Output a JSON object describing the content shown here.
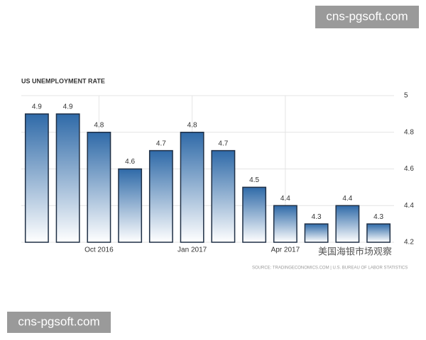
{
  "chart_data": {
    "type": "bar",
    "title": "US UNEMPLOYMENT RATE",
    "categories": [
      null,
      null,
      "Oct 2016",
      null,
      null,
      "Jan 2017",
      null,
      null,
      "Apr 2017",
      null,
      null,
      null
    ],
    "values": [
      4.9,
      4.9,
      4.8,
      4.6,
      4.7,
      4.8,
      4.7,
      4.5,
      4.4,
      4.3,
      4.4,
      4.3
    ],
    "color": "#2f6aa8",
    "ylim": [
      4.2,
      5
    ],
    "yticks": [
      4.2,
      4.4,
      4.6,
      4.8,
      5
    ],
    "grid": true,
    "source": "SOURCE: TRADINGECONOMICS.COM | U.S. BUREAU OF LABOR STATISTICS"
  },
  "watermarks": [
    "cns-pgsoft.com",
    "cns-pgsoft.com",
    "美国海银市场观察"
  ]
}
